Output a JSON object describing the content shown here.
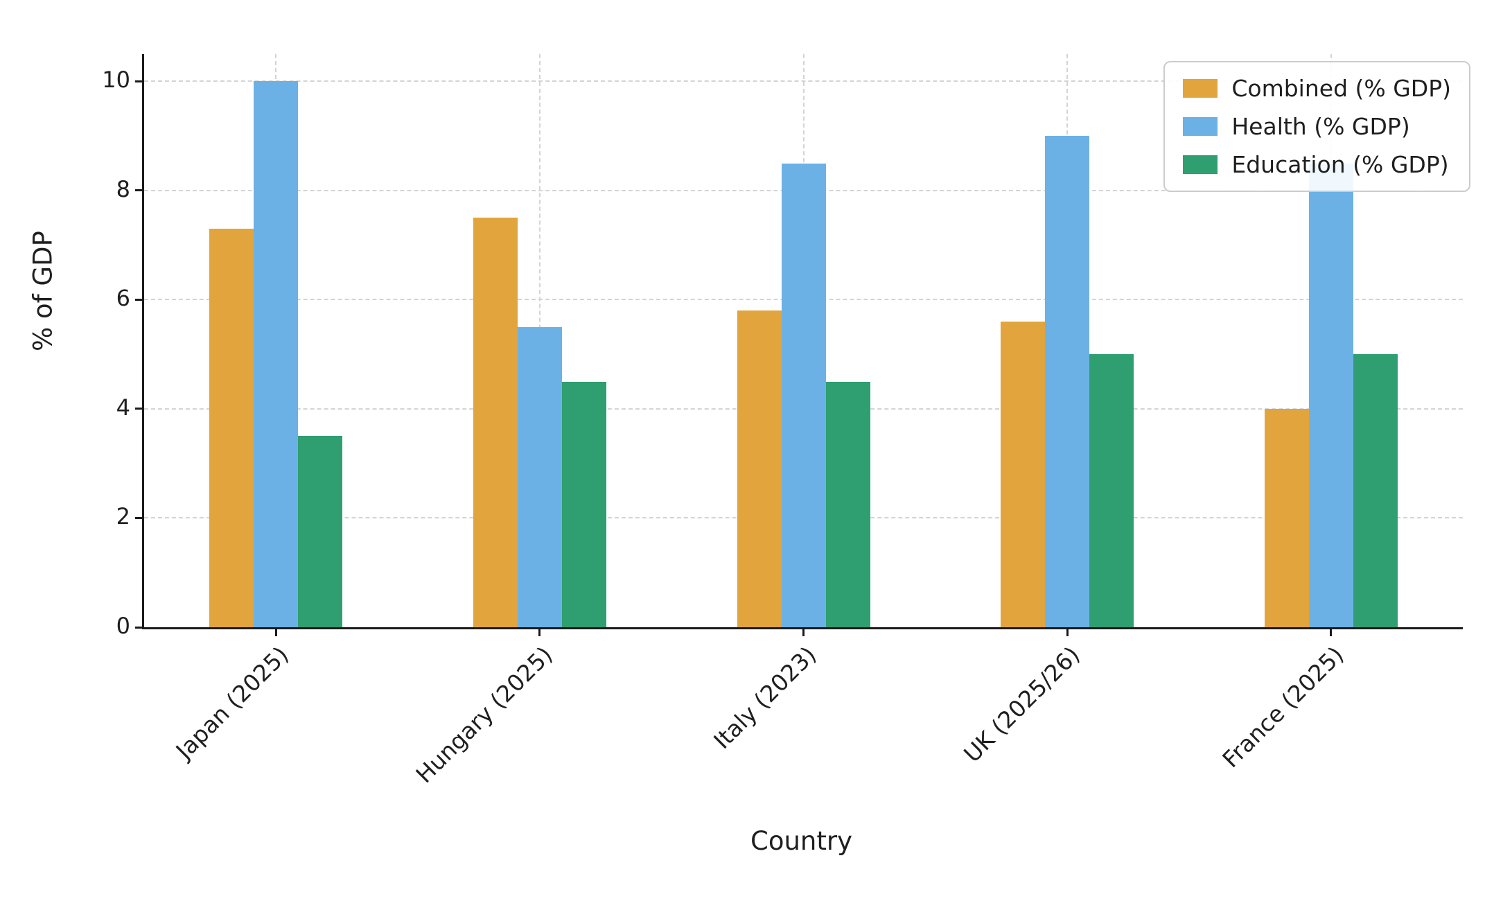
{
  "figure": {
    "background": "#ffffff",
    "text_color": "#1f1f1f",
    "grid_color": "#d4d4d4",
    "spine_color": "#1a1a1a"
  },
  "chart_data": {
    "type": "bar",
    "title": "",
    "xlabel": "Country",
    "ylabel": "% of GDP",
    "categories": [
      "Japan (2025)",
      "Hungary (2025)",
      "Italy (2023)",
      "UK (2025/26)",
      "France (2025)"
    ],
    "series": [
      {
        "name": "Combined (% GDP)",
        "color": "#E2A43C",
        "values": [
          7.3,
          7.5,
          5.8,
          5.6,
          4.0
        ]
      },
      {
        "name": "Health (% GDP)",
        "color": "#6BB1E6",
        "values": [
          10.0,
          5.5,
          8.5,
          9.0,
          8.5
        ]
      },
      {
        "name": "Education (% GDP)",
        "color": "#2F9E70",
        "values": [
          3.5,
          4.5,
          4.5,
          5.0,
          5.0
        ]
      }
    ],
    "ylim": [
      0,
      10.5
    ],
    "yticks": [
      0,
      2,
      4,
      6,
      8,
      10
    ],
    "grid": "dashed",
    "legend_position": "top-right"
  }
}
